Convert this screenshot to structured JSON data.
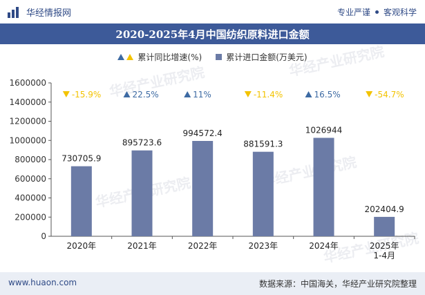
{
  "header": {
    "logo_text": "华经情报网",
    "slogan_left": "专业严谨",
    "slogan_right": "客观科学"
  },
  "title": "2020-2025年4月中国纺织原料进口金额",
  "legend": {
    "growth": "累计同比增速(%)",
    "amount": "累计进口金额(万美元)"
  },
  "footer": {
    "website": "www.huaon.com",
    "source": "数据来源：中国海关，华经产业研究院整理"
  },
  "watermark": "华经产业研究院",
  "colors": {
    "bar": "#6b7ba6",
    "up": "#3d6aa3",
    "down": "#f3c300",
    "header": "#3d5a99"
  },
  "chart_data": {
    "type": "bar",
    "categories": [
      "2020年",
      "2021年",
      "2022年",
      "2023年",
      "2024年",
      "2025年\n1-4月"
    ],
    "series": [
      {
        "name": "累计进口金额(万美元)",
        "values": [
          730705.9,
          895723.6,
          994572.4,
          881591.3,
          1026944,
          202404.9
        ],
        "labels": [
          "730705.9",
          "895723.6",
          "994572.4",
          "881591.3",
          "1026944",
          "202404.9"
        ]
      },
      {
        "name": "累计同比增速(%)",
        "values": [
          -15.9,
          22.5,
          11,
          -11.4,
          16.5,
          -54.7
        ],
        "labels": [
          "-15.9%",
          "22.5%",
          "11%",
          "-11.4%",
          "16.5%",
          "-54.7%"
        ]
      }
    ],
    "ylim": [
      0,
      1600000
    ],
    "yticks": [
      0,
      200000,
      400000,
      600000,
      800000,
      1000000,
      1200000,
      1400000,
      1600000
    ],
    "ytick_labels": [
      "0",
      "200000",
      "400000",
      "600000",
      "800000",
      "1000000",
      "1200000",
      "1400000",
      "1600000"
    ],
    "grid": false,
    "legend_position": "top"
  }
}
